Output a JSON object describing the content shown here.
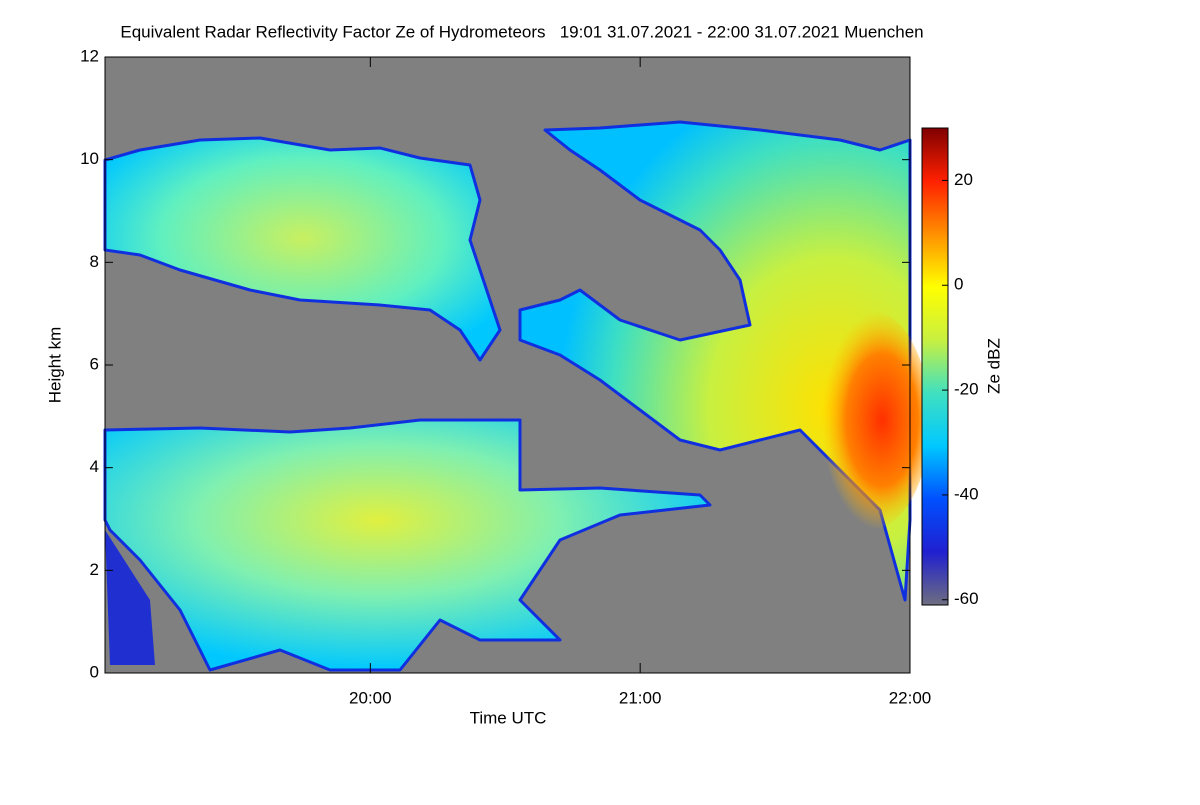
{
  "chart_data": {
    "type": "heatmap",
    "title": "Equivalent Radar Reflectivity Factor Ze of Hydrometeors   19:01 31.07.2021 - 22:00 31.07.2021 Muenchen",
    "xlabel": "Time UTC",
    "ylabel": "Height km",
    "xlim": [
      1,
      180
    ],
    "xticks": [
      {
        "value": 60,
        "label": "20:00"
      },
      {
        "value": 120,
        "label": "21:00"
      },
      {
        "value": 180,
        "label": "22:00"
      }
    ],
    "ylim": [
      0,
      12
    ],
    "yticks": [
      0,
      2,
      4,
      6,
      8,
      10,
      12
    ],
    "background": "#808080",
    "colorbar": {
      "label": "Ze dBZ",
      "lim": [
        -61,
        30
      ],
      "ticks": [
        -60,
        -40,
        -20,
        0,
        20
      ],
      "colors": [
        "#6e6e80",
        "#2020d0",
        "#0050ff",
        "#00c8ff",
        "#40e0c0",
        "#c8f040",
        "#ffff00",
        "#ff9000",
        "#ff2000",
        "#800000"
      ]
    }
  }
}
